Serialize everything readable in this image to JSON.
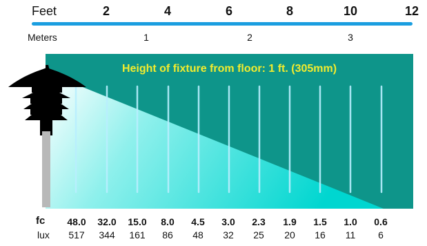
{
  "scale": {
    "feet_label": "Feet",
    "feet_ticks": [
      "2",
      "4",
      "6",
      "8",
      "10",
      "12"
    ],
    "meters_label": "Meters",
    "meter_ticks": [
      "1",
      "2",
      "3"
    ]
  },
  "panel": {
    "title": "Height of fixture from floor: 1 ft. (305mm)"
  },
  "readings": {
    "fc_label": "fc",
    "lux_label": "lux",
    "fc": [
      "48.0",
      "32.0",
      "15.0",
      "8.0",
      "4.5",
      "3.0",
      "2.3",
      "1.9",
      "1.5",
      "1.0",
      "0.6"
    ],
    "lux": [
      "517",
      "344",
      "161",
      "86",
      "48",
      "32",
      "25",
      "20",
      "16",
      "11",
      "6"
    ]
  },
  "colors": {
    "scale_bar": "#1a9ee0",
    "panel_bg": "#0e958a",
    "beam_far": "#00d6d0",
    "beam_near": "#ffffff",
    "title_text": "#f2ec2e",
    "fixture": "#000000",
    "pole": "#b8b8b8"
  },
  "icons": {
    "fixture": "bollard-light-icon"
  }
}
